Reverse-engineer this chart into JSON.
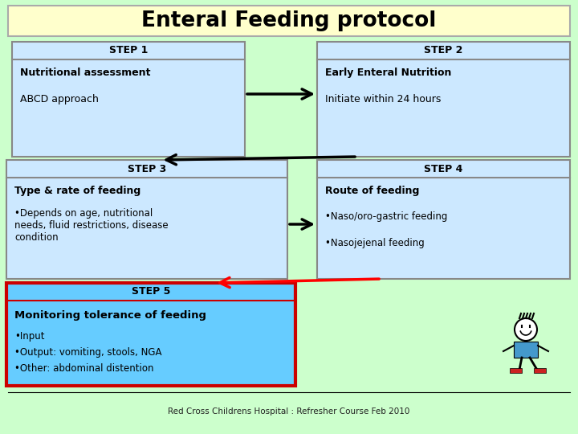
{
  "title": "Enteral Feeding protocol",
  "title_bg": "#ffffcc",
  "background_color": "#ccffcc",
  "step1_header": "STEP 1",
  "step1_line1": "Nutritional assessment",
  "step1_line2": "ABCD approach",
  "step2_header": "STEP 2",
  "step2_line1": "Early Enteral Nutrition",
  "step2_line2": "Initiate within 24 hours",
  "step3_header": "STEP 3",
  "step3_line1": "Type & rate of feeding",
  "step3_line2": "•Depends on age, nutritional\nneeds, fluid restrictions, disease\ncondition",
  "step4_header": "STEP 4",
  "step4_line1": "Route of feeding",
  "step4_line2": "•Naso/oro-gastric feeding",
  "step4_line3": "•Nasojejenal feeding",
  "step5_header": "STEP 5",
  "step5_line1": "Monitoring tolerance of feeding",
  "step5_line2": "•Input",
  "step5_line3": "•Output: vomiting, stools, NGA",
  "step5_line4": "•Other: abdominal distention",
  "box_color_light": "#cce8ff",
  "box_color_step5": "#66ccff",
  "border_gray": "#888888",
  "border_red": "#cc0000",
  "footer": "Red Cross Childrens Hospital : Refresher Course Feb 2010"
}
